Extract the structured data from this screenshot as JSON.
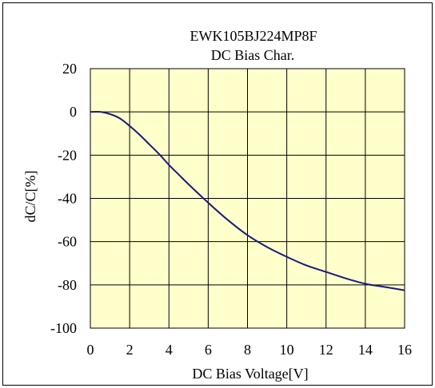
{
  "chart_data": {
    "type": "line",
    "title": "EWK105BJ224MP8F",
    "subtitle": "DC Bias Char.",
    "xlabel": "DC Bias Voltage[V]",
    "ylabel": "dC/C[%]",
    "xlim": [
      0,
      16
    ],
    "ylim": [
      -100,
      20
    ],
    "xticks": [
      0,
      2,
      4,
      6,
      8,
      10,
      12,
      14,
      16
    ],
    "yticks": [
      20,
      0,
      -20,
      -40,
      -60,
      -80,
      -100
    ],
    "grid": true,
    "plot_background": "#ffffcc",
    "line_color": "#1a1a7a",
    "series": [
      {
        "x": [
          0,
          0.5,
          1,
          1.5,
          2,
          2.5,
          3,
          3.5,
          4,
          4.5,
          5,
          6,
          7,
          8,
          9,
          10,
          11,
          12,
          13,
          14,
          15,
          16
        ],
        "y": [
          0,
          0,
          -1,
          -3,
          -6.5,
          -10.5,
          -15,
          -19.5,
          -24.5,
          -29,
          -33.5,
          -42,
          -50,
          -57,
          -62.5,
          -67,
          -71,
          -74,
          -77,
          -79.5,
          -81,
          -82.5
        ]
      }
    ]
  }
}
